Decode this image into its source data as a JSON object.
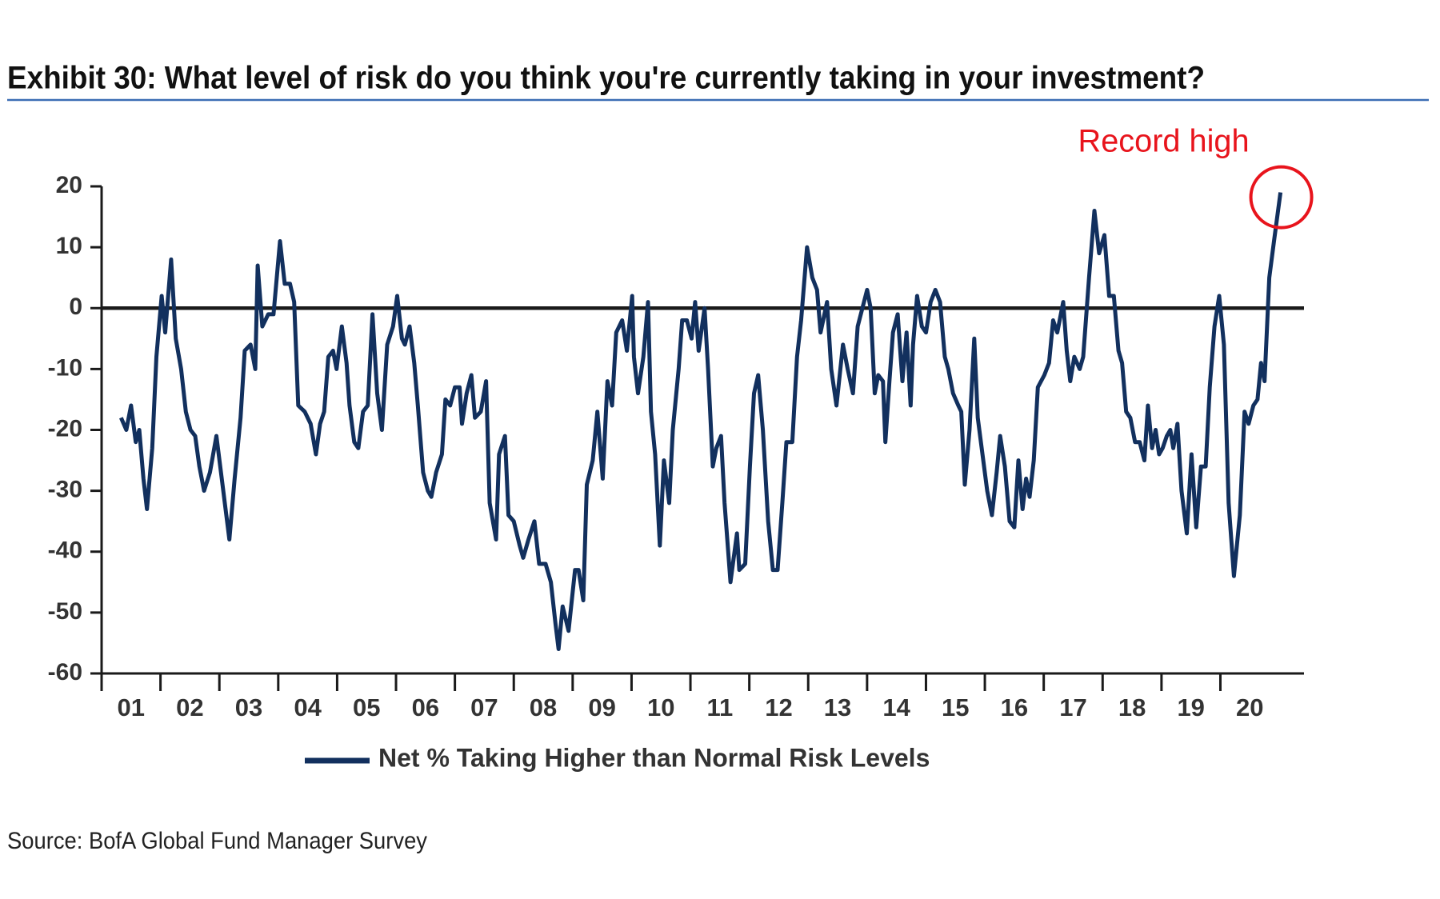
{
  "chart_data": {
    "type": "line",
    "title": "Exhibit 30: What level of risk do you think you're currently taking in your investment?",
    "annotation": "Record high",
    "source": "Source: BofA Global Fund Manager Survey",
    "x": [
      1.33,
      1.42,
      1.5,
      1.58,
      1.64,
      1.71,
      1.77,
      1.86,
      1.93,
      2.02,
      2.08,
      2.18,
      2.26,
      2.35,
      2.43,
      2.51,
      2.59,
      2.66,
      2.74,
      2.84,
      2.95,
      3.04,
      3.17,
      3.26,
      3.36,
      3.43,
      3.53,
      3.61,
      3.65,
      3.73,
      3.83,
      3.92,
      4.03,
      4.11,
      4.2,
      4.27,
      4.34,
      4.45,
      4.55,
      4.64,
      4.71,
      4.78,
      4.85,
      4.93,
      4.99,
      5.08,
      5.16,
      5.21,
      5.29,
      5.36,
      5.44,
      5.52,
      5.6,
      5.68,
      5.76,
      5.85,
      5.95,
      6.02,
      6.1,
      6.15,
      6.23,
      6.31,
      6.37,
      6.46,
      6.54,
      6.6,
      6.68,
      6.78,
      6.84,
      6.92,
      7.0,
      7.08,
      7.12,
      7.2,
      7.28,
      7.34,
      7.44,
      7.53,
      7.59,
      7.7,
      7.75,
      7.85,
      7.91,
      8.0,
      8.1,
      8.16,
      8.25,
      8.35,
      8.43,
      8.54,
      8.63,
      8.71,
      8.76,
      8.83,
      8.93,
      9.04,
      9.1,
      9.18,
      9.24,
      9.34,
      9.42,
      9.51,
      9.59,
      9.67,
      9.74,
      9.84,
      9.92,
      10.01,
      10.04,
      10.11,
      10.2,
      10.28,
      10.33,
      10.4,
      10.48,
      10.55,
      10.64,
      10.7,
      10.8,
      10.86,
      10.94,
      11.02,
      11.08,
      11.14,
      11.24,
      11.3,
      11.38,
      11.44,
      11.52,
      11.58,
      11.68,
      11.79,
      11.83,
      11.93,
      12.01,
      12.08,
      12.15,
      12.23,
      12.32,
      12.4,
      12.48,
      12.56,
      12.63,
      12.73,
      12.81,
      12.88,
      12.98,
      13.07,
      13.15,
      13.21,
      13.32,
      13.39,
      13.48,
      13.59,
      13.67,
      13.76,
      13.84,
      13.92,
      14.0,
      14.06,
      14.13,
      14.19,
      14.27,
      14.31,
      14.38,
      14.44,
      14.52,
      14.6,
      14.67,
      14.74,
      14.78,
      14.85,
      14.93,
      15.0,
      15.08,
      15.16,
      15.24,
      15.32,
      15.38,
      15.46,
      15.55,
      15.6,
      15.66,
      15.74,
      15.82,
      15.88,
      15.96,
      16.04,
      16.12,
      16.2,
      16.26,
      16.34,
      16.42,
      16.5,
      16.57,
      16.64,
      16.7,
      16.76,
      16.83,
      16.9,
      17.01,
      17.09,
      17.16,
      17.23,
      17.33,
      17.39,
      17.45,
      17.52,
      17.61,
      17.67,
      17.77,
      17.86,
      17.94,
      18.03,
      18.11,
      18.19,
      18.27,
      18.33,
      18.4,
      18.47,
      18.55,
      18.63,
      18.71,
      18.77,
      18.84,
      18.9,
      18.96,
      19.02,
      19.09,
      19.15,
      19.2,
      19.27,
      19.34,
      19.43,
      19.51,
      19.59,
      19.67,
      19.75,
      19.82,
      19.9,
      19.98,
      20.06,
      20.14,
      20.23,
      20.33,
      20.41,
      20.48,
      20.56,
      20.63,
      20.69,
      20.75,
      20.83,
      20.91,
      21.02
    ],
    "series": [
      {
        "name": "Net % Taking Higher than Normal Risk Levels",
        "color": "#12305e",
        "values": [
          -18,
          -20,
          -16,
          -22,
          -20,
          -28,
          -33,
          -23,
          -8,
          2,
          -4,
          8,
          -5,
          -10,
          -17,
          -20,
          -21,
          -26,
          -30,
          -27,
          -21,
          -28,
          -38,
          -28,
          -18,
          -7,
          -6,
          -10,
          7,
          -3,
          -1,
          -1,
          11,
          4,
          4,
          1,
          -16,
          -17,
          -19,
          -24,
          -19,
          -17,
          -8,
          -7,
          -10,
          -3,
          -9,
          -16,
          -22,
          -23,
          -17,
          -16,
          -1,
          -14,
          -20,
          -6,
          -3,
          2,
          -5,
          -6,
          -3,
          -9,
          -16,
          -27,
          -30,
          -31,
          -27,
          -24,
          -15,
          -16,
          -13,
          -13,
          -19,
          -14,
          -11,
          -18,
          -17,
          -12,
          -32,
          -38,
          -24,
          -21,
          -34,
          -35,
          -39,
          -41,
          -38,
          -35,
          -42,
          -42,
          -45,
          -52,
          -56,
          -49,
          -53,
          -43,
          -43,
          -48,
          -29,
          -25,
          -17,
          -28,
          -12,
          -16,
          -4,
          -2,
          -7,
          2,
          -8,
          -14,
          -8,
          1,
          -17,
          -24,
          -39,
          -25,
          -32,
          -20,
          -10,
          -2,
          -2,
          -5,
          1,
          -7,
          0,
          -10,
          -26,
          -23,
          -21,
          -32,
          -45,
          -37,
          -43,
          -42,
          -26,
          -14,
          -11,
          -20,
          -35,
          -43,
          -43,
          -32,
          -22,
          -22,
          -8,
          -2,
          10,
          5,
          3,
          -4,
          1,
          -10,
          -16,
          -6,
          -10,
          -14,
          -3,
          0,
          3,
          0,
          -14,
          -11,
          -12,
          -22,
          -12,
          -4,
          -1,
          -12,
          -4,
          -16,
          -6,
          2,
          -3,
          -4,
          1,
          3,
          1,
          -8,
          -10,
          -14,
          -16,
          -17,
          -29,
          -20,
          -5,
          -18,
          -24,
          -30,
          -34,
          -27,
          -21,
          -26,
          -35,
          -36,
          -25,
          -33,
          -28,
          -31,
          -25,
          -13,
          -11,
          -9,
          -2,
          -4,
          1,
          -7,
          -12,
          -8,
          -10,
          -8,
          5,
          16,
          9,
          12,
          2,
          2,
          -7,
          -9,
          -17,
          -18,
          -22,
          -22,
          -25,
          -16,
          -23,
          -20,
          -24,
          -23,
          -21,
          -20,
          -23,
          -19,
          -30,
          -37,
          -24,
          -36,
          -26,
          -26,
          -13,
          -3,
          2,
          -6,
          -32,
          -44,
          -34,
          -17,
          -19,
          -16,
          -15,
          -9,
          -12,
          5,
          11,
          19
        ]
      }
    ],
    "xlim": [
      1,
      21.42
    ],
    "xticks": [
      {
        "value": 1,
        "label": "01"
      },
      {
        "value": 2,
        "label": "02"
      },
      {
        "value": 3,
        "label": "03"
      },
      {
        "value": 4,
        "label": "04"
      },
      {
        "value": 5,
        "label": "05"
      },
      {
        "value": 6,
        "label": "06"
      },
      {
        "value": 7,
        "label": "07"
      },
      {
        "value": 8,
        "label": "08"
      },
      {
        "value": 9,
        "label": "09"
      },
      {
        "value": 10,
        "label": "10"
      },
      {
        "value": 11,
        "label": "11"
      },
      {
        "value": 12,
        "label": "12"
      },
      {
        "value": 13,
        "label": "13"
      },
      {
        "value": 14,
        "label": "14"
      },
      {
        "value": 15,
        "label": "15"
      },
      {
        "value": 16,
        "label": "16"
      },
      {
        "value": 17,
        "label": "17"
      },
      {
        "value": 18,
        "label": "18"
      },
      {
        "value": 19,
        "label": "19"
      },
      {
        "value": 20,
        "label": "20"
      }
    ],
    "ylim": [
      -60,
      20
    ],
    "yticks": [
      -60,
      -50,
      -40,
      -30,
      -20,
      -10,
      0,
      10,
      20
    ],
    "annotation_color": "#e8141c"
  }
}
